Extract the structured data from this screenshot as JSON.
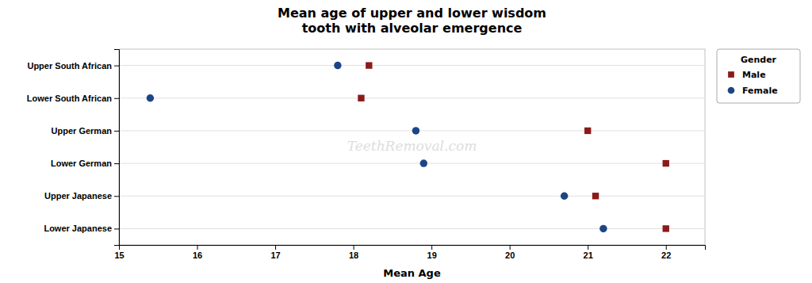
{
  "chart_data": {
    "type": "scatter",
    "title": "Mean age of upper and lower wisdom\ntooth with alveolar emergence",
    "xlabel": "Mean Age",
    "categories": [
      "Upper South African",
      "Lower South African",
      "Upper German",
      "Lower German",
      "Upper Japanese",
      "Lower Japanese"
    ],
    "series": [
      {
        "name": "Male",
        "color": "#8B1A1A",
        "marker": "square",
        "values": [
          18.2,
          18.1,
          21.0,
          22.0,
          21.1,
          22.0
        ]
      },
      {
        "name": "Female",
        "color": "#1C4587",
        "marker": "circle",
        "values": [
          17.8,
          15.4,
          18.8,
          18.9,
          20.7,
          21.2
        ]
      }
    ],
    "xlim": [
      15,
      22.5
    ],
    "xticks": [
      15,
      16,
      17,
      18,
      19,
      20,
      21,
      22
    ],
    "grid": "y",
    "legend": "right",
    "legend_title": "Gender",
    "annotations": [
      "TeethRemoval.com"
    ]
  }
}
